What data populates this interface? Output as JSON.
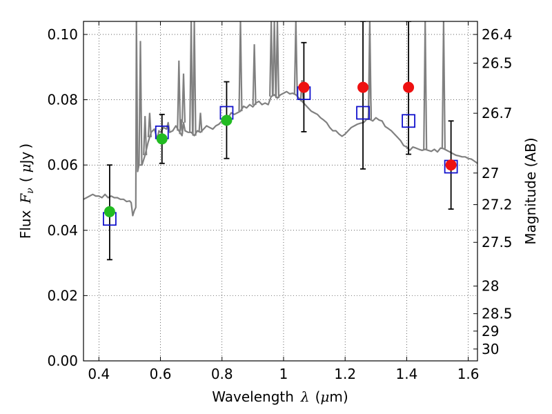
{
  "chart_data": {
    "type": "scatter",
    "xlabel": {
      "prefix": "Wavelength",
      "symbol": "λ",
      "unit_open": "(",
      "unit_sym": "μ",
      "unit_rest": "m)"
    },
    "ylabel": {
      "prefix": "Flux",
      "symbol": "F",
      "sub": "ν",
      "unit_open": "(",
      "unit_sym": "μ",
      "unit_rest": "Jy",
      "unit_close": ")"
    },
    "y2label": "Magnitude (AB)",
    "xlim": [
      0.35,
      1.63
    ],
    "ylim": [
      0.0,
      0.104
    ],
    "grid": true,
    "x_ticks": [
      {
        "value": 0.4,
        "label": "0.4"
      },
      {
        "value": 0.6,
        "label": "0.6"
      },
      {
        "value": 0.8,
        "label": "0.8"
      },
      {
        "value": 1.0,
        "label": "1"
      },
      {
        "value": 1.2,
        "label": "1.2"
      },
      {
        "value": 1.4,
        "label": "1.4"
      },
      {
        "value": 1.6,
        "label": "1.6"
      }
    ],
    "y_ticks": [
      {
        "value": 0.0,
        "label": "0.00"
      },
      {
        "value": 0.02,
        "label": "0.02"
      },
      {
        "value": 0.04,
        "label": "0.04"
      },
      {
        "value": 0.06,
        "label": "0.06"
      },
      {
        "value": 0.08,
        "label": "0.08"
      },
      {
        "value": 0.1,
        "label": "0.10"
      }
    ],
    "y2_ticks": [
      {
        "label": "26.4",
        "mag": 26.4
      },
      {
        "label": "26.5",
        "mag": 26.5
      },
      {
        "label": "26.7",
        "mag": 26.7
      },
      {
        "label": "27",
        "mag": 27.0
      },
      {
        "label": "27.2",
        "mag": 27.2
      },
      {
        "label": "27.5",
        "mag": 27.5
      },
      {
        "label": "28",
        "mag": 28.0
      },
      {
        "label": "28.5",
        "mag": 28.5
      },
      {
        "label": "29",
        "mag": 29.0
      },
      {
        "label": "30",
        "mag": 30.0
      }
    ],
    "colors": {
      "model": "#808080",
      "green": "#22bb22",
      "red": "#ee1111",
      "square": "#1111cc",
      "errorbar": "#000000"
    },
    "series": [
      {
        "kind": "model-spectrum",
        "points": [
          [
            0.35,
            0.0495
          ],
          [
            0.36,
            0.05
          ],
          [
            0.37,
            0.0505
          ],
          [
            0.38,
            0.051
          ],
          [
            0.39,
            0.0505
          ],
          [
            0.4,
            0.0505
          ],
          [
            0.41,
            0.05
          ],
          [
            0.42,
            0.051
          ],
          [
            0.43,
            0.05
          ],
          [
            0.44,
            0.0505
          ],
          [
            0.45,
            0.05
          ],
          [
            0.46,
            0.05
          ],
          [
            0.47,
            0.0495
          ],
          [
            0.48,
            0.0495
          ],
          [
            0.49,
            0.0488
          ],
          [
            0.5,
            0.049
          ],
          [
            0.505,
            0.0485
          ],
          [
            0.51,
            0.0445
          ],
          [
            0.515,
            0.046
          ],
          [
            0.52,
            0.047
          ],
          [
            0.522,
            0.105
          ],
          [
            0.526,
            0.058
          ],
          [
            0.53,
            0.06
          ],
          [
            0.54,
            0.06
          ],
          [
            0.55,
            0.063
          ],
          [
            0.56,
            0.067
          ],
          [
            0.57,
            0.07
          ],
          [
            0.58,
            0.071
          ],
          [
            0.59,
            0.068
          ],
          [
            0.595,
            0.0705
          ],
          [
            0.6,
            0.07
          ],
          [
            0.61,
            0.0715
          ],
          [
            0.62,
            0.071
          ],
          [
            0.625,
            0.073
          ],
          [
            0.63,
            0.07
          ],
          [
            0.64,
            0.0705
          ],
          [
            0.65,
            0.072
          ],
          [
            0.66,
            0.0705
          ],
          [
            0.67,
            0.069
          ],
          [
            0.675,
            0.073
          ],
          [
            0.68,
            0.0705
          ],
          [
            0.69,
            0.07
          ],
          [
            0.7,
            0.07
          ],
          [
            0.71,
            0.069
          ],
          [
            0.72,
            0.0705
          ],
          [
            0.73,
            0.07
          ],
          [
            0.74,
            0.071
          ],
          [
            0.75,
            0.072
          ],
          [
            0.76,
            0.0715
          ],
          [
            0.77,
            0.071
          ],
          [
            0.78,
            0.072
          ],
          [
            0.79,
            0.0725
          ],
          [
            0.8,
            0.0735
          ],
          [
            0.81,
            0.075
          ],
          [
            0.82,
            0.0745
          ],
          [
            0.83,
            0.076
          ],
          [
            0.84,
            0.0755
          ],
          [
            0.85,
            0.076
          ],
          [
            0.86,
            0.0765
          ],
          [
            0.87,
            0.078
          ],
          [
            0.88,
            0.0775
          ],
          [
            0.89,
            0.0785
          ],
          [
            0.9,
            0.0778
          ],
          [
            0.91,
            0.079
          ],
          [
            0.92,
            0.0795
          ],
          [
            0.93,
            0.0785
          ],
          [
            0.94,
            0.079
          ],
          [
            0.95,
            0.0785
          ],
          [
            0.96,
            0.081
          ],
          [
            0.97,
            0.0815
          ],
          [
            0.98,
            0.0805
          ],
          [
            0.99,
            0.0815
          ],
          [
            1.0,
            0.082
          ],
          [
            1.01,
            0.0825
          ],
          [
            1.02,
            0.0818
          ],
          [
            1.03,
            0.082
          ],
          [
            1.04,
            0.0815
          ],
          [
            1.05,
            0.0805
          ],
          [
            1.06,
            0.0795
          ],
          [
            1.07,
            0.0785
          ],
          [
            1.08,
            0.0775
          ],
          [
            1.09,
            0.0765
          ],
          [
            1.1,
            0.076
          ],
          [
            1.11,
            0.0755
          ],
          [
            1.12,
            0.0745
          ],
          [
            1.13,
            0.0738
          ],
          [
            1.14,
            0.073
          ],
          [
            1.15,
            0.0715
          ],
          [
            1.16,
            0.0705
          ],
          [
            1.17,
            0.0705
          ],
          [
            1.18,
            0.0695
          ],
          [
            1.19,
            0.0688
          ],
          [
            1.2,
            0.0695
          ],
          [
            1.21,
            0.0705
          ],
          [
            1.22,
            0.0715
          ],
          [
            1.23,
            0.072
          ],
          [
            1.24,
            0.0725
          ],
          [
            1.25,
            0.0728
          ],
          [
            1.26,
            0.073
          ],
          [
            1.27,
            0.074
          ],
          [
            1.28,
            0.074
          ],
          [
            1.29,
            0.0735
          ],
          [
            1.3,
            0.0745
          ],
          [
            1.31,
            0.0738
          ],
          [
            1.32,
            0.0735
          ],
          [
            1.33,
            0.0718
          ],
          [
            1.34,
            0.0712
          ],
          [
            1.35,
            0.0705
          ],
          [
            1.36,
            0.0695
          ],
          [
            1.37,
            0.0685
          ],
          [
            1.38,
            0.0675
          ],
          [
            1.39,
            0.066
          ],
          [
            1.4,
            0.0655
          ],
          [
            1.41,
            0.0645
          ],
          [
            1.42,
            0.0655
          ],
          [
            1.43,
            0.0652
          ],
          [
            1.44,
            0.0648
          ],
          [
            1.45,
            0.0645
          ],
          [
            1.46,
            0.0648
          ],
          [
            1.47,
            0.0645
          ],
          [
            1.48,
            0.0642
          ],
          [
            1.49,
            0.0648
          ],
          [
            1.5,
            0.064
          ],
          [
            1.51,
            0.0652
          ],
          [
            1.52,
            0.065
          ],
          [
            1.53,
            0.0645
          ],
          [
            1.54,
            0.064
          ],
          [
            1.55,
            0.0635
          ],
          [
            1.56,
            0.063
          ],
          [
            1.57,
            0.0628
          ],
          [
            1.58,
            0.0625
          ],
          [
            1.59,
            0.0625
          ],
          [
            1.6,
            0.062
          ],
          [
            1.61,
            0.0618
          ],
          [
            1.62,
            0.0612
          ],
          [
            1.63,
            0.0605
          ]
        ],
        "emission_lines": [
          [
            0.535,
            0.098
          ],
          [
            0.55,
            0.075
          ],
          [
            0.565,
            0.076
          ],
          [
            0.66,
            0.092
          ],
          [
            0.667,
            0.074
          ],
          [
            0.675,
            0.088
          ],
          [
            0.7,
            0.104
          ],
          [
            0.71,
            0.104
          ],
          [
            0.73,
            0.076
          ],
          [
            0.86,
            0.104
          ],
          [
            0.905,
            0.097
          ],
          [
            0.96,
            0.104
          ],
          [
            0.97,
            0.104
          ],
          [
            0.98,
            0.104
          ],
          [
            1.04,
            0.104
          ],
          [
            1.06,
            0.086
          ],
          [
            1.28,
            0.095
          ],
          [
            1.28,
            0.104
          ],
          [
            1.46,
            0.104
          ],
          [
            1.52,
            0.104
          ]
        ]
      },
      {
        "kind": "squares",
        "points": [
          [
            0.435,
            0.0435
          ],
          [
            0.605,
            0.07
          ],
          [
            0.815,
            0.076
          ],
          [
            1.066,
            0.082
          ],
          [
            1.258,
            0.076
          ],
          [
            1.406,
            0.0735
          ],
          [
            1.544,
            0.0595
          ]
        ]
      },
      {
        "kind": "green-circles",
        "points": [
          [
            0.435,
            0.0457
          ],
          [
            0.605,
            0.068
          ],
          [
            0.815,
            0.0737
          ]
        ]
      },
      {
        "kind": "red-circles",
        "points": [
          [
            1.066,
            0.0838
          ],
          [
            1.258,
            0.0838
          ],
          [
            1.406,
            0.0838
          ],
          [
            1.544,
            0.06
          ]
        ]
      },
      {
        "kind": "errorbars",
        "points": [
          {
            "x": 0.435,
            "low": 0.031,
            "high": 0.06
          },
          {
            "x": 0.605,
            "low": 0.0605,
            "high": 0.0755
          },
          {
            "x": 0.815,
            "low": 0.062,
            "high": 0.0855
          },
          {
            "x": 1.066,
            "low": 0.0702,
            "high": 0.0975
          },
          {
            "x": 1.258,
            "low": 0.0588,
            "high": 0.104
          },
          {
            "x": 1.406,
            "low": 0.0633,
            "high": 0.104
          },
          {
            "x": 1.544,
            "low": 0.0465,
            "high": 0.0735
          }
        ]
      }
    ]
  }
}
